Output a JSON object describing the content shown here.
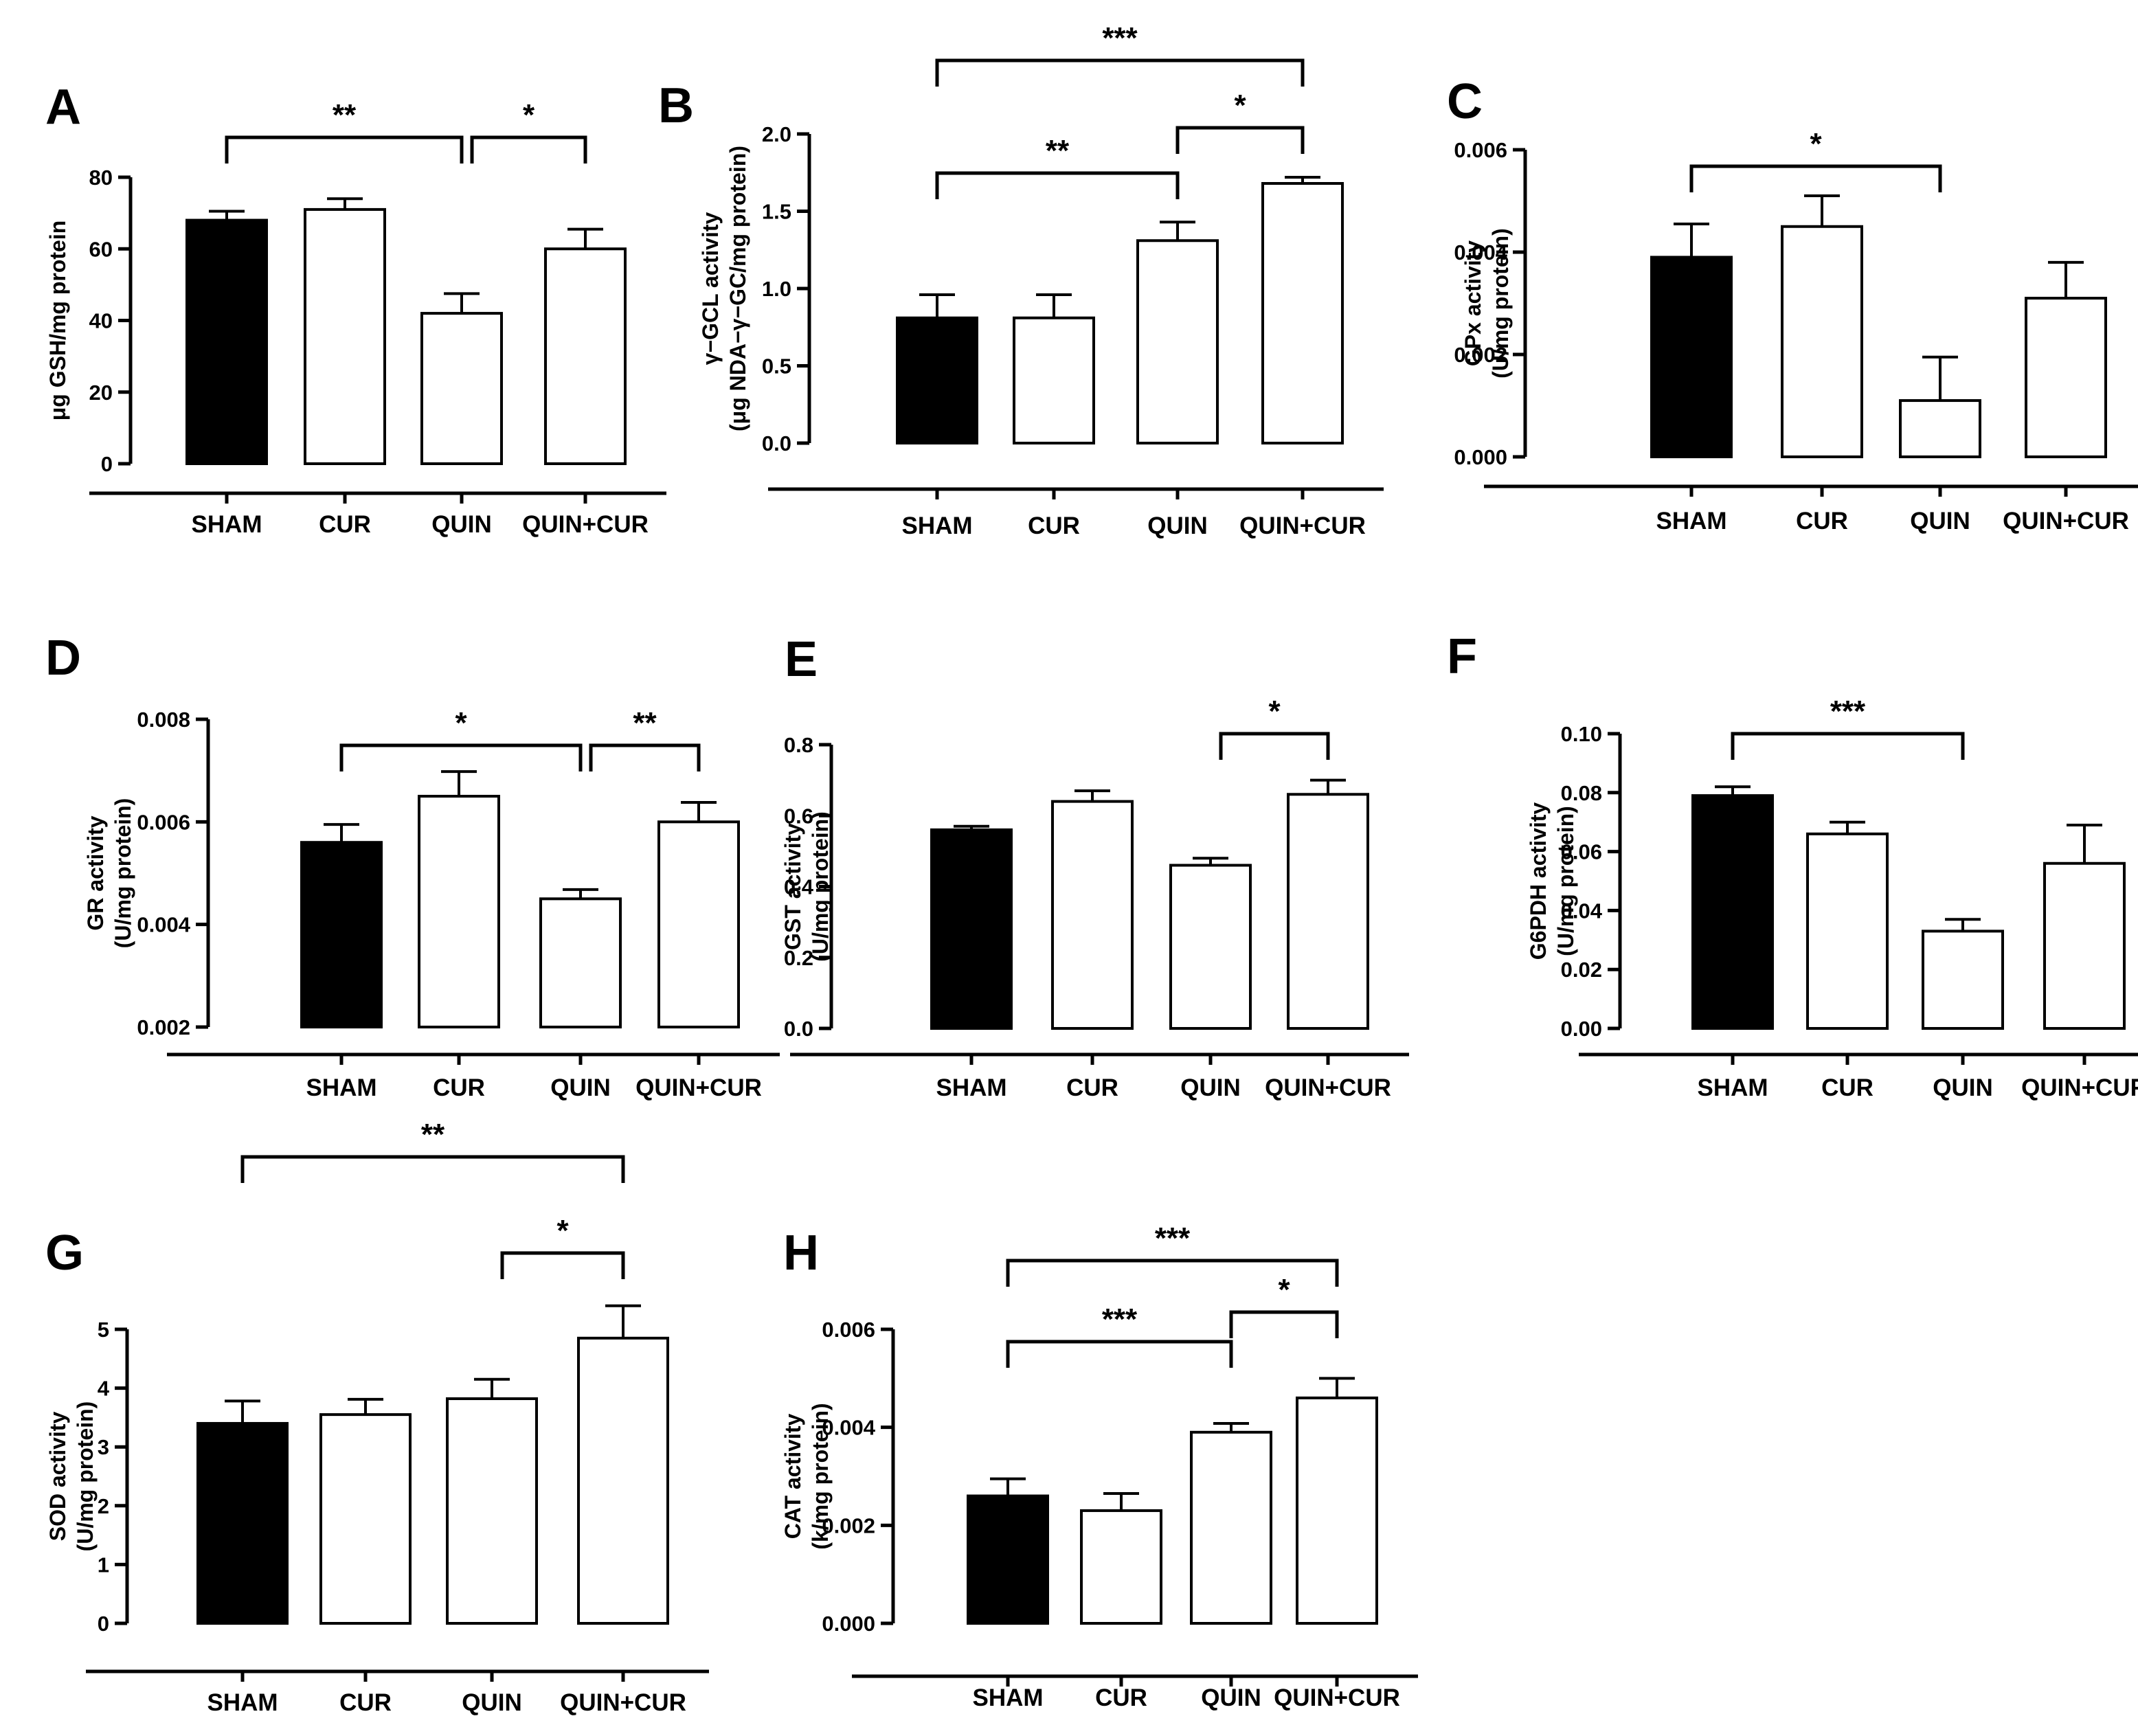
{
  "chart_data": [
    {
      "type": "bar",
      "panel": "A",
      "ylabel": [
        "μg GSH/mg protein"
      ],
      "categories": [
        "SHAM",
        "CUR",
        "QUIN",
        "QUIN+CUR"
      ],
      "values": [
        68,
        71,
        42,
        60
      ],
      "errors": [
        2.5,
        3,
        5.5,
        5.5
      ],
      "colors": [
        "#000000",
        "#ffffff",
        "#ffffff",
        "#ffffff"
      ],
      "ylim": [
        0,
        80
      ],
      "ticks": [
        0,
        20,
        40,
        60,
        80
      ],
      "tick_labels": [
        "0",
        "20",
        "40",
        "60",
        "80"
      ],
      "significance": [
        {
          "from": 0,
          "to": 2,
          "label": "**",
          "level": 0
        },
        {
          "from": 2,
          "to": 3,
          "label": "*",
          "level": 0
        }
      ]
    },
    {
      "type": "bar",
      "panel": "B",
      "ylabel": [
        "γ−GCL activity",
        "(μg NDA−γ−GC/mg protein)"
      ],
      "categories": [
        "SHAM",
        "CUR",
        "QUIN",
        "QUIN+CUR"
      ],
      "values": [
        0.81,
        0.81,
        1.31,
        1.68
      ],
      "errors": [
        0.15,
        0.15,
        0.12,
        0.04
      ],
      "colors": [
        "#000000",
        "#ffffff",
        "#ffffff",
        "#ffffff"
      ],
      "ylim": [
        0,
        2.0
      ],
      "ticks": [
        0,
        0.5,
        1.0,
        1.5,
        2.0
      ],
      "tick_labels": [
        "0.0",
        "0.5",
        "1.0",
        "1.5",
        "2.0"
      ],
      "significance": [
        {
          "from": 0,
          "to": 2,
          "label": "**",
          "level": 0
        },
        {
          "from": 2,
          "to": 3,
          "label": "*",
          "level": 1
        },
        {
          "from": 0,
          "to": 3,
          "label": "***",
          "level": 2
        }
      ]
    },
    {
      "type": "bar",
      "panel": "C",
      "ylabel": [
        "GPx activity",
        "(U/mg protein)"
      ],
      "categories": [
        "SHAM",
        "CUR",
        "QUIN",
        "QUIN+CUR"
      ],
      "values": [
        0.0039,
        0.0045,
        0.0011,
        0.0031
      ],
      "errors": [
        0.00065,
        0.0006,
        0.00085,
        0.0007
      ],
      "colors": [
        "#000000",
        "#ffffff",
        "#ffffff",
        "#ffffff"
      ],
      "ylim": [
        0,
        0.006
      ],
      "ticks": [
        0,
        0.002,
        0.004,
        0.006
      ],
      "tick_labels": [
        "0.000",
        "0.002",
        "0.004",
        "0.006"
      ],
      "significance": [
        {
          "from": 0,
          "to": 2,
          "label": "*",
          "level": 0
        }
      ]
    },
    {
      "type": "bar",
      "panel": "D",
      "ylabel": [
        "GR activity",
        "(U/mg protein)"
      ],
      "categories": [
        "SHAM",
        "CUR",
        "QUIN",
        "QUIN+CUR"
      ],
      "values": [
        0.0056,
        0.0065,
        0.0045,
        0.006
      ],
      "errors": [
        0.00035,
        0.00048,
        0.00018,
        0.00038
      ],
      "colors": [
        "#000000",
        "#ffffff",
        "#ffffff",
        "#ffffff"
      ],
      "ylim": [
        0.002,
        0.008
      ],
      "ticks": [
        0.002,
        0.004,
        0.006,
        0.008
      ],
      "tick_labels": [
        "0.002",
        "0.004",
        "0.006",
        "0.008"
      ],
      "significance": [
        {
          "from": 0,
          "to": 2,
          "label": "*",
          "level": 0
        },
        {
          "from": 2,
          "to": 3,
          "label": "**",
          "level": 0
        }
      ]
    },
    {
      "type": "bar",
      "panel": "E",
      "ylabel": [
        "GST activity",
        "(U/mg protein)"
      ],
      "categories": [
        "SHAM",
        "CUR",
        "QUIN",
        "QUIN+CUR"
      ],
      "values": [
        0.56,
        0.64,
        0.46,
        0.66
      ],
      "errors": [
        0.01,
        0.03,
        0.02,
        0.04
      ],
      "colors": [
        "#000000",
        "#ffffff",
        "#ffffff",
        "#ffffff"
      ],
      "ylim": [
        0,
        0.8
      ],
      "ticks": [
        0,
        0.2,
        0.4,
        0.6,
        0.8
      ],
      "tick_labels": [
        "0.0",
        "0.2",
        "0.4",
        "0.6",
        "0.8"
      ],
      "significance": [
        {
          "from": 2,
          "to": 3,
          "label": "*",
          "level": 0
        }
      ]
    },
    {
      "type": "bar",
      "panel": "F",
      "ylabel": [
        "G6PDH activity",
        "(U/mg protein)"
      ],
      "categories": [
        "SHAM",
        "CUR",
        "QUIN",
        "QUIN+CUR"
      ],
      "values": [
        0.079,
        0.066,
        0.033,
        0.056
      ],
      "errors": [
        0.003,
        0.004,
        0.004,
        0.013
      ],
      "colors": [
        "#000000",
        "#ffffff",
        "#ffffff",
        "#ffffff"
      ],
      "ylim": [
        0,
        0.1
      ],
      "ticks": [
        0,
        0.02,
        0.04,
        0.06,
        0.08,
        0.1
      ],
      "tick_labels": [
        "0.00",
        "0.02",
        "0.04",
        "0.06",
        "0.08",
        "0.10"
      ],
      "significance": [
        {
          "from": 0,
          "to": 2,
          "label": "***",
          "level": 0
        }
      ]
    },
    {
      "type": "bar",
      "panel": "G",
      "ylabel": [
        "SOD activity",
        "(U/mg protein)"
      ],
      "categories": [
        "SHAM",
        "CUR",
        "QUIN",
        "QUIN+CUR"
      ],
      "values": [
        3.4,
        3.55,
        3.82,
        4.85
      ],
      "errors": [
        0.38,
        0.26,
        0.33,
        0.55
      ],
      "colors": [
        "#000000",
        "#ffffff",
        "#ffffff",
        "#ffffff"
      ],
      "ylim": [
        0,
        5
      ],
      "ticks": [
        0,
        1,
        2,
        3,
        4,
        5
      ],
      "tick_labels": [
        "0",
        "1",
        "2",
        "3",
        "4",
        "5"
      ],
      "significance": [
        {
          "from": 2,
          "to": 3,
          "label": "*",
          "level": 0
        },
        {
          "from": 0,
          "to": 3,
          "label": "**",
          "level": 1
        }
      ]
    },
    {
      "type": "bar",
      "panel": "H",
      "ylabel": [
        "CAT activity",
        "(k/mg protein)"
      ],
      "categories": [
        "SHAM",
        "CUR",
        "QUIN",
        "QUIN+CUR"
      ],
      "values": [
        0.0026,
        0.0023,
        0.0039,
        0.0046
      ],
      "errors": [
        0.00035,
        0.00035,
        0.00018,
        0.0004
      ],
      "colors": [
        "#000000",
        "#ffffff",
        "#ffffff",
        "#ffffff"
      ],
      "ylim": [
        0,
        0.006
      ],
      "ticks": [
        0,
        0.002,
        0.004,
        0.006
      ],
      "tick_labels": [
        "0.000",
        "0.002",
        "0.004",
        "0.006"
      ],
      "significance": [
        {
          "from": 0,
          "to": 2,
          "label": "***",
          "level": 0
        },
        {
          "from": 2,
          "to": 3,
          "label": "*",
          "level": 1
        },
        {
          "from": 0,
          "to": 3,
          "label": "***",
          "level": 2
        }
      ]
    }
  ]
}
